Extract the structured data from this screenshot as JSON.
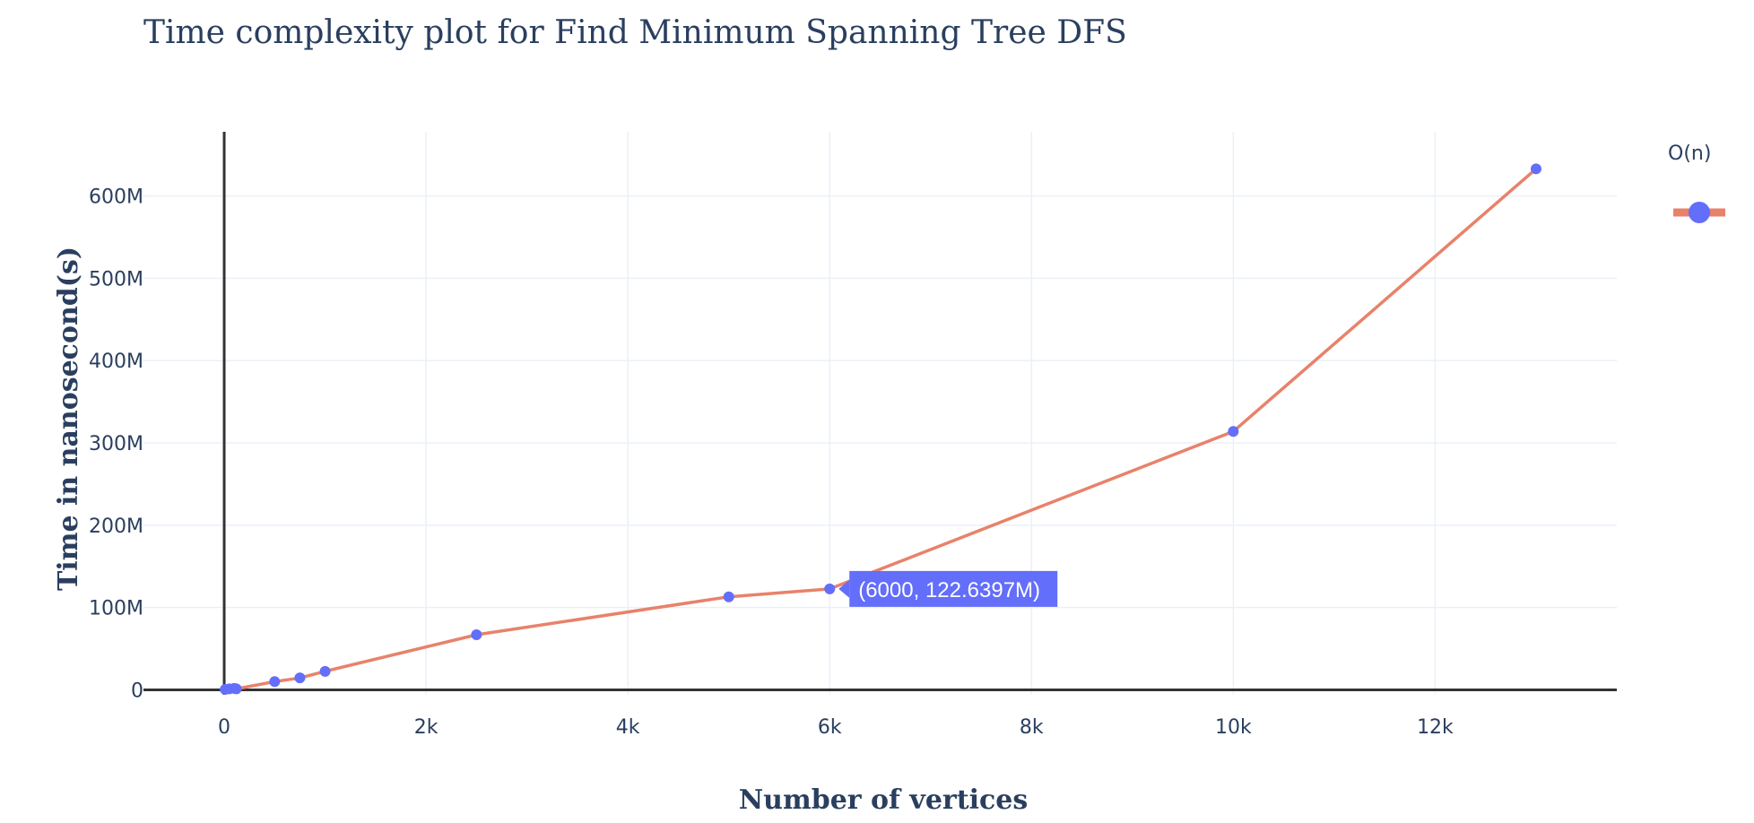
{
  "chart_data": {
    "type": "line",
    "title": "Time complexity plot for Find Minimum Spanning Tree DFS",
    "xlabel": "Number of vertices",
    "ylabel": "Time in nanosecond(s)",
    "xlim": [
      -800,
      13800
    ],
    "ylim": [
      -6000000,
      678000000
    ],
    "x_ticks": [
      0,
      2000,
      4000,
      6000,
      8000,
      10000,
      12000
    ],
    "x_tick_labels": [
      "0",
      "2k",
      "4k",
      "6k",
      "8k",
      "10k",
      "12k"
    ],
    "y_ticks": [
      0,
      100000000,
      200000000,
      300000000,
      400000000,
      500000000,
      600000000
    ],
    "y_tick_labels": [
      "0",
      "100M",
      "200M",
      "300M",
      "400M",
      "500M",
      "600M"
    ],
    "grid": true,
    "legend_position": "top-right",
    "legend_title": "O(n)",
    "series": [
      {
        "x": [
          10,
          50,
          100,
          120,
          500,
          750,
          1000,
          2500,
          5000,
          6000,
          10000,
          13000
        ],
        "y": [
          500000,
          1200000,
          1800000,
          1200000,
          10000000,
          14500000,
          22500000,
          67000000,
          113000000,
          122639700,
          314000000,
          633000000
        ]
      }
    ],
    "hover_label": {
      "x": 6000,
      "y": 122639700,
      "text": "(6000, 122.6397M)"
    },
    "colors": {
      "line": "#e8826a",
      "marker": "#636efa",
      "grid": "#ebf0f8",
      "zeroline": "#333333",
      "text": "#2a3f5f"
    }
  }
}
